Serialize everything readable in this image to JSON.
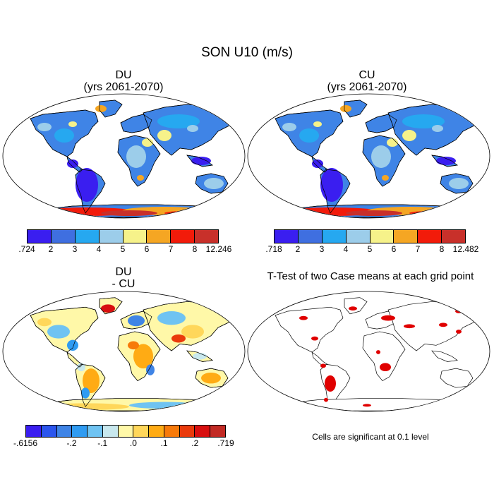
{
  "figure": {
    "title": "SON U10 (m/s)"
  },
  "panels": [
    {
      "title": "DU",
      "subtitle": "(yrs 2061-2070)",
      "colorbar": {
        "colors": [
          "#3a1ef0",
          "#3f6fe0",
          "#26a8f0",
          "#9ccdea",
          "#f6f28a",
          "#f5a623",
          "#f21b0a",
          "#c8302a"
        ],
        "tick_labels": [
          ".724",
          "2",
          "3",
          "4",
          "5",
          "6",
          "7",
          "8",
          "12.246"
        ]
      }
    },
    {
      "title": "CU",
      "subtitle": "(yrs 2061-2070)",
      "colorbar": {
        "colors": [
          "#3a1ef0",
          "#3f6fe0",
          "#26a8f0",
          "#9ccdea",
          "#f6f28a",
          "#f5a623",
          "#f21b0a",
          "#c8302a"
        ],
        "tick_labels": [
          ".718",
          "2",
          "3",
          "4",
          "5",
          "6",
          "7",
          "8",
          "12.482"
        ]
      }
    },
    {
      "title": "DU",
      "subtitle": "- CU",
      "colorbar": {
        "colors": [
          "#3a1ef0",
          "#2b55ee",
          "#3f84e6",
          "#2f9bf2",
          "#6fc3f2",
          "#c8e8ee",
          "#fff8a8",
          "#ffd75a",
          "#ffab14",
          "#f77a0a",
          "#ea3a0b",
          "#d80f0f",
          "#c22a24"
        ],
        "tick_labels": [
          "-.6156",
          "-.2",
          "-.1",
          ".0",
          ".1",
          ".2",
          ".719"
        ]
      }
    },
    {
      "title": "T-Test of two Case means at each grid point",
      "note": "Cells are significant at 0.1 level"
    }
  ]
}
